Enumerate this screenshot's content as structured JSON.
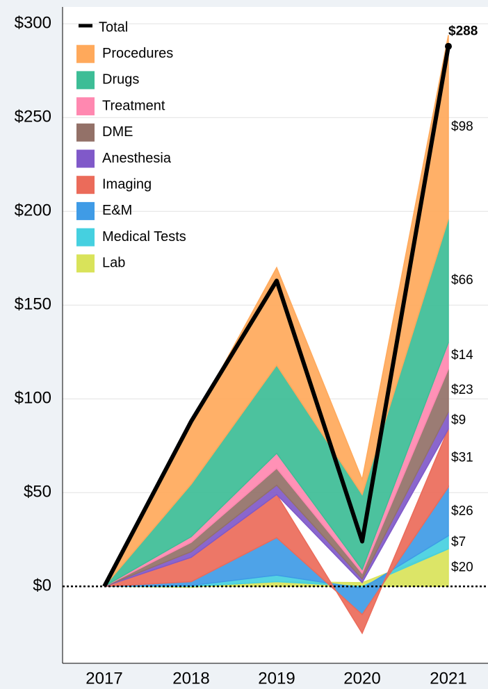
{
  "chart_data": {
    "type": "area",
    "stacked": true,
    "categories": [
      "2017",
      "2018",
      "2019",
      "2020",
      "2021"
    ],
    "series": [
      {
        "name": "Total",
        "mark": "line",
        "color": "#000000",
        "values": [
          0,
          88,
          163,
          24,
          288
        ],
        "value_labels": [
          null,
          null,
          null,
          null,
          "$288"
        ]
      },
      {
        "name": "Procedures",
        "color": "#ffa95b",
        "values": [
          0,
          32,
          52,
          8,
          98
        ],
        "value_labels": [
          null,
          null,
          null,
          null,
          "$98"
        ]
      },
      {
        "name": "Drugs",
        "color": "#3dbd96",
        "values": [
          0,
          28,
          47,
          40,
          66
        ],
        "value_labels": [
          null,
          null,
          null,
          null,
          "$66"
        ]
      },
      {
        "name": "Treatment",
        "color": "#ff88b0",
        "values": [
          0,
          3,
          8,
          2,
          14
        ],
        "value_labels": [
          null,
          null,
          null,
          null,
          "$14"
        ]
      },
      {
        "name": "DME",
        "color": "#937168",
        "values": [
          0,
          5,
          9,
          3,
          23
        ],
        "value_labels": [
          null,
          null,
          null,
          null,
          "$23"
        ]
      },
      {
        "name": "Anesthesia",
        "color": "#8059c9",
        "values": [
          0,
          3,
          5,
          2,
          9
        ],
        "value_labels": [
          null,
          null,
          null,
          null,
          "$9"
        ]
      },
      {
        "name": "Imaging",
        "color": "#eb6b5a",
        "values": [
          0,
          13,
          23,
          -10,
          31
        ],
        "value_labels": [
          null,
          null,
          null,
          null,
          "$31"
        ]
      },
      {
        "name": "E&M",
        "color": "#3f9be6",
        "values": [
          0,
          2,
          20,
          -14,
          26
        ],
        "value_labels": [
          null,
          null,
          null,
          null,
          "$26"
        ]
      },
      {
        "name": "Medical Tests",
        "color": "#45d0e0",
        "values": [
          0,
          0.5,
          3.5,
          -1,
          7
        ],
        "value_labels": [
          null,
          null,
          null,
          null,
          "$7"
        ]
      },
      {
        "name": "Lab",
        "color": "#d9e35a",
        "values": [
          0,
          -0.5,
          2.5,
          2,
          20
        ],
        "value_labels": [
          null,
          null,
          null,
          null,
          "$20"
        ]
      }
    ],
    "ylim": [
      -41,
      309
    ],
    "yticks": [
      {
        "value": 0,
        "label": "$0"
      },
      {
        "value": 50,
        "label": "$50"
      },
      {
        "value": 100,
        "label": "$100"
      },
      {
        "value": 150,
        "label": "$150"
      },
      {
        "value": 200,
        "label": "$200"
      },
      {
        "value": 250,
        "label": "$250"
      },
      {
        "value": 300,
        "label": "$300"
      }
    ],
    "grid": true,
    "legend": "top-left"
  }
}
